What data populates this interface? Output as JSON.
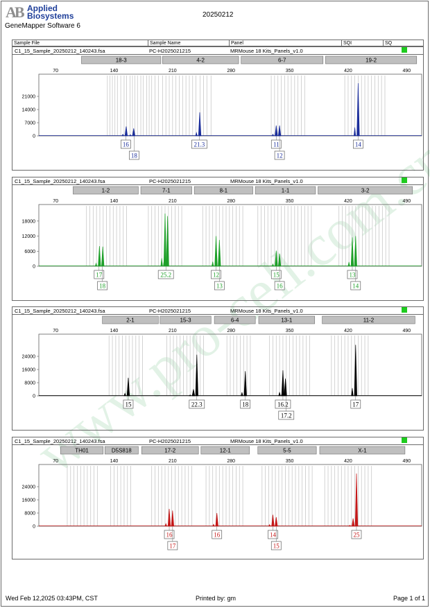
{
  "header": {
    "logo_mark": "AB",
    "logo_line1": "Applied",
    "logo_line2": "Biosystems",
    "app_name": "GeneMapper Software 6",
    "report_date": "20250212"
  },
  "table_header": {
    "sample_file": "Sample File",
    "sample_name": "Sample Name",
    "panel": "Panel",
    "sqi": "SQI",
    "sq": "SQ"
  },
  "colors": {
    "blue": "#1a2d9a",
    "green": "#1fa02a",
    "black": "#000000",
    "red": "#c41818",
    "sq_pass": "#1ecb1e",
    "bin_fill": "#bfbfbf",
    "bin_line": "#c8c8c8"
  },
  "chart_data": [
    {
      "type": "electropherogram",
      "sample_file": "C1_15_Sample_20250212_140243.fsa",
      "sample_name": "PC-H2025021215",
      "panel": "MRMouse 18 Kits_Panels_v1.0",
      "color": "blue",
      "x_ticks": [
        70,
        140,
        210,
        280,
        350,
        420,
        490
      ],
      "xlim": [
        50,
        508
      ],
      "y_ticks": [
        0,
        7000,
        14000,
        21000
      ],
      "ylim": [
        0,
        28000
      ],
      "markers": [
        {
          "label": "18-3",
          "start": 101,
          "end": 196
        },
        {
          "label": "4-2",
          "start": 198,
          "end": 289
        },
        {
          "label": "6-7",
          "start": 292,
          "end": 390
        },
        {
          "label": "19-2",
          "start": 393,
          "end": 502
        }
      ],
      "bins": [
        132,
        135,
        138,
        141,
        144,
        148,
        152,
        155,
        159,
        162,
        165,
        168,
        172,
        175,
        179,
        182,
        185,
        189,
        193,
        198,
        202,
        206,
        210,
        214,
        218,
        222,
        226,
        230,
        234,
        238,
        243,
        247,
        251,
        256,
        328,
        332,
        336,
        340,
        344,
        348,
        352,
        356,
        360,
        364,
        368,
        416,
        420,
        424,
        428,
        432,
        436,
        440,
        444,
        448,
        452,
        456,
        460,
        464
      ],
      "peaks": [
        {
          "x": 154.5,
          "height": 5000,
          "stutter": 900
        },
        {
          "x": 163.5,
          "height": 4000,
          "stutter": 700
        },
        {
          "x": 242.5,
          "height": 12500,
          "stutter": 1800
        },
        {
          "x": 334,
          "height": 5500,
          "stutter": 900
        },
        {
          "x": 338,
          "height": 5500,
          "stutter": 900
        },
        {
          "x": 432,
          "height": 28000,
          "stutter": 4500
        }
      ],
      "alleles": [
        {
          "label": "16",
          "x": 154,
          "row": 0
        },
        {
          "label": "18",
          "x": 164,
          "row": 1
        },
        {
          "label": "21.3",
          "x": 242,
          "row": 0
        },
        {
          "label": "11",
          "x": 334,
          "row": 0
        },
        {
          "label": "12",
          "x": 338,
          "row": 1
        },
        {
          "label": "14",
          "x": 432,
          "row": 0
        }
      ]
    },
    {
      "type": "electropherogram",
      "sample_file": "C1_15_Sample_20250212_140243.fsa",
      "sample_name": "PC-H2025021215",
      "panel": "MRMouse 18 Kits_Panels_v1.0",
      "color": "green",
      "x_ticks": [
        70,
        140,
        210,
        280,
        350,
        420,
        490
      ],
      "xlim": [
        50,
        508
      ],
      "y_ticks": [
        0,
        6000,
        12000,
        18000
      ],
      "ylim": [
        0,
        21000
      ],
      "markers": [
        {
          "label": "1-2",
          "start": 91,
          "end": 169
        },
        {
          "label": "7-1",
          "start": 172,
          "end": 233
        },
        {
          "label": "8-1",
          "start": 236,
          "end": 306
        },
        {
          "label": "1-1",
          "start": 309,
          "end": 381
        },
        {
          "label": "3-2",
          "start": 384,
          "end": 497
        }
      ],
      "bins": [
        107,
        111,
        115,
        119,
        123,
        127,
        131,
        135,
        139,
        143,
        147,
        151,
        155,
        181,
        185,
        189,
        193,
        197,
        201,
        205,
        209,
        213,
        217,
        221,
        246,
        250,
        254,
        258,
        262,
        266,
        270,
        274,
        278,
        282,
        286,
        290,
        294,
        312,
        316,
        320,
        324,
        328,
        332,
        336,
        340,
        344,
        348,
        352,
        356,
        360,
        364,
        368,
        372,
        376,
        409,
        413,
        417,
        421,
        425,
        429,
        433,
        437,
        441,
        445,
        449,
        453,
        457,
        461,
        465,
        469
      ],
      "peaks": [
        {
          "x": 122.5,
          "height": 8000,
          "stutter": 1200
        },
        {
          "x": 126.5,
          "height": 7800,
          "stutter": 1100
        },
        {
          "x": 201,
          "height": 21000,
          "stutter": 3200
        },
        {
          "x": 204,
          "height": 20000,
          "stutter": 3000
        },
        {
          "x": 262,
          "height": 12000,
          "stutter": 1800
        },
        {
          "x": 266,
          "height": 10500,
          "stutter": 1600
        },
        {
          "x": 334,
          "height": 6200,
          "stutter": 900
        },
        {
          "x": 338,
          "height": 5000,
          "stutter": 800
        },
        {
          "x": 425,
          "height": 11500,
          "stutter": 1700
        },
        {
          "x": 429,
          "height": 12000,
          "stutter": 1700
        }
      ],
      "alleles": [
        {
          "label": "17",
          "x": 122,
          "row": 0
        },
        {
          "label": "18",
          "x": 126,
          "row": 1
        },
        {
          "label": "25.2",
          "x": 202,
          "row": 0
        },
        {
          "label": "12",
          "x": 262,
          "row": 0
        },
        {
          "label": "13",
          "x": 266,
          "row": 1
        },
        {
          "label": "15",
          "x": 334,
          "row": 0
        },
        {
          "label": "16",
          "x": 338,
          "row": 1
        },
        {
          "label": "13",
          "x": 425,
          "row": 0
        },
        {
          "label": "14",
          "x": 429,
          "row": 1
        }
      ]
    },
    {
      "type": "electropherogram",
      "sample_file": "C1_15_Sample_20250212_140243.fsa",
      "sample_name": "PC-H2025021215",
      "panel": "MRMouse 18 Kits_Panels_v1.0",
      "color": "black",
      "x_ticks": [
        70,
        140,
        210,
        280,
        350,
        420,
        490
      ],
      "xlim": [
        50,
        508
      ],
      "y_ticks": [
        0,
        8000,
        16000,
        24000
      ],
      "ylim": [
        0,
        32000
      ],
      "markers": [
        {
          "label": "2-1",
          "start": 126,
          "end": 193
        },
        {
          "label": "15-3",
          "start": 195,
          "end": 256
        },
        {
          "label": "6-4",
          "start": 260,
          "end": 309
        },
        {
          "label": "13-1",
          "start": 313,
          "end": 380
        },
        {
          "label": "11-2",
          "start": 389,
          "end": 500
        }
      ],
      "bins": [
        134,
        138,
        142,
        146,
        150,
        154,
        158,
        162,
        166,
        170,
        174,
        203,
        207,
        211,
        215,
        219,
        223,
        227,
        231,
        235,
        239,
        243,
        247,
        275,
        279,
        283,
        287,
        291,
        295,
        299,
        303,
        326,
        330,
        334,
        338,
        342,
        346,
        350,
        354,
        358,
        362,
        366,
        370,
        374,
        400,
        404,
        408,
        412,
        416,
        420,
        424,
        428,
        432,
        436,
        440,
        444
      ],
      "peaks": [
        {
          "x": 157,
          "height": 11000,
          "stutter": 1600
        },
        {
          "x": 235,
          "height": 4000,
          "stutter": 600
        },
        {
          "x": 239,
          "height": 25000,
          "stutter": 3800
        },
        {
          "x": 297,
          "height": 15000,
          "stutter": 2200
        },
        {
          "x": 342,
          "height": 15500,
          "stutter": 2300
        },
        {
          "x": 345,
          "height": 10500,
          "stutter": 1600
        },
        {
          "x": 429,
          "height": 31000,
          "stutter": 4700
        }
      ],
      "alleles": [
        {
          "label": "15",
          "x": 157,
          "row": 0
        },
        {
          "label": "22.3",
          "x": 239,
          "row": 0
        },
        {
          "label": "18",
          "x": 297,
          "row": 0
        },
        {
          "label": "16.2",
          "x": 342,
          "row": 0
        },
        {
          "label": "17.2",
          "x": 346,
          "row": 1
        },
        {
          "label": "17",
          "x": 429,
          "row": 0
        }
      ]
    },
    {
      "type": "electropherogram",
      "sample_file": "C1_15_Sample_20250212_140243.fsa",
      "sample_name": "PC-H2025021215",
      "panel": "MRMouse 18 Kits_Panels_v1.0",
      "color": "red",
      "x_ticks": [
        70,
        140,
        210,
        280,
        350,
        420,
        490
      ],
      "xlim": [
        50,
        508
      ],
      "y_ticks": [
        0,
        8000,
        16000,
        24000
      ],
      "ylim": [
        0,
        32000
      ],
      "markers": [
        {
          "label": "TH01",
          "start": 76,
          "end": 127
        },
        {
          "label": "D5S818",
          "start": 129,
          "end": 169
        },
        {
          "label": "17-2",
          "start": 173,
          "end": 241
        },
        {
          "label": "12-1",
          "start": 244,
          "end": 302
        },
        {
          "label": "5-5",
          "start": 312,
          "end": 382
        },
        {
          "label": "X-1",
          "start": 386,
          "end": 488
        }
      ],
      "bins": [
        84,
        88,
        92,
        96,
        100,
        104,
        108,
        112,
        116,
        120,
        136,
        140,
        144,
        148,
        152,
        156,
        160,
        185,
        189,
        193,
        197,
        201,
        205,
        209,
        213,
        217,
        221,
        225,
        229,
        233,
        250,
        254,
        258,
        262,
        266,
        270,
        274,
        278,
        282,
        286,
        290,
        294,
        317,
        321,
        325,
        329,
        333,
        337,
        341,
        345,
        349,
        353,
        357,
        361,
        365,
        369,
        373,
        377,
        392,
        396,
        400,
        404,
        408,
        412,
        416,
        420,
        424,
        428,
        432,
        436,
        440,
        444,
        448
      ],
      "peaks": [
        {
          "x": 206,
          "height": 10500,
          "stutter": 1600
        },
        {
          "x": 210,
          "height": 9500,
          "stutter": 1400
        },
        {
          "x": 263,
          "height": 8000,
          "stutter": 1200
        },
        {
          "x": 330,
          "height": 7000,
          "stutter": 1000
        },
        {
          "x": 334,
          "height": 5500,
          "stutter": 800
        },
        {
          "x": 426,
          "height": 4500,
          "stutter": 600
        },
        {
          "x": 430,
          "height": 32000,
          "stutter": 4800
        }
      ],
      "alleles": [
        {
          "label": "16",
          "x": 206,
          "row": 0
        },
        {
          "label": "17",
          "x": 210,
          "row": 1
        },
        {
          "label": "16",
          "x": 263,
          "row": 0
        },
        {
          "label": "14",
          "x": 330,
          "row": 0
        },
        {
          "label": "15",
          "x": 334,
          "row": 1
        },
        {
          "label": "25",
          "x": 430,
          "row": 0
        }
      ]
    }
  ],
  "footer": {
    "printed_at": "Wed Feb 12,2025 03:43PM, CST",
    "printed_by": "Printed by: gm",
    "page": "Page 1 of 1"
  },
  "watermark": "www.pro-cell.com.cn"
}
